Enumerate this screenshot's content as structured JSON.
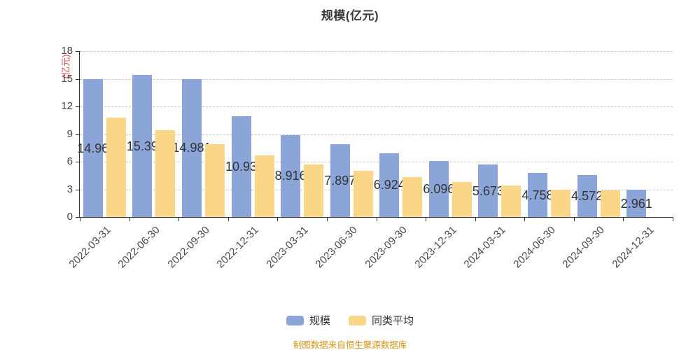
{
  "chart_data": {
    "type": "bar",
    "title": "规模(亿元)",
    "y_axis_name": "(亿元)",
    "xlabel": "",
    "ylabel": "(亿元)",
    "ylim": [
      0,
      18
    ],
    "yticks": [
      0,
      3,
      6,
      9,
      12,
      15,
      18
    ],
    "grid": "horizontal dashed",
    "legend_position": "bottom",
    "categories": [
      "2022-03-31",
      "2022-06-30",
      "2022-09-30",
      "2022-12-31",
      "2023-03-31",
      "2023-06-30",
      "2023-09-30",
      "2023-12-31",
      "2024-03-31",
      "2024-06-30",
      "2024-09-30",
      "2024-12-31"
    ],
    "series": [
      {
        "name": "规模",
        "color": "#8ca5d8",
        "values": [
          14.96,
          15.39,
          14.981,
          10.93,
          8.916,
          7.897,
          6.924,
          6.096,
          5.673,
          4.758,
          4.572,
          2.961
        ],
        "labels": [
          "14.96",
          "15.39",
          "14.981",
          "10.93",
          "8.916",
          "7.897",
          "6.924",
          "6.096",
          "5.673",
          "4.758",
          "4.572",
          "2.961"
        ]
      },
      {
        "name": "同类平均",
        "color": "#fad689",
        "values": [
          10.8,
          9.4,
          7.9,
          6.7,
          5.7,
          5.0,
          4.3,
          3.8,
          3.4,
          3.0,
          2.9,
          null
        ],
        "labels": []
      }
    ]
  },
  "footer": "制图数据来自恒生聚源数据库",
  "colors": {
    "title_text": "#3a3a3a",
    "axis_line": "#333333",
    "grid_line": "#c9c9c9",
    "tick_text": "#444444",
    "xlabel_text": "#4a4a4a",
    "bar_label_text": "#333333",
    "y_axis_name": "#e34545",
    "legend_text": "#333333",
    "footer_text": "#d9941a"
  }
}
